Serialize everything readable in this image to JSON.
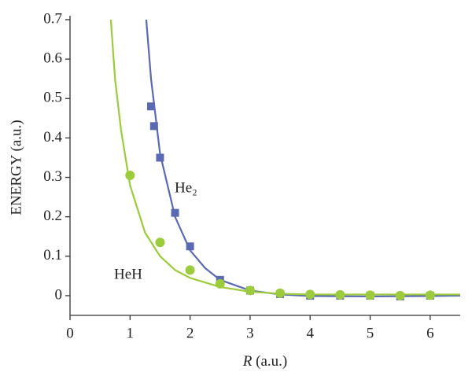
{
  "chart_data": {
    "type": "scatter",
    "x_label": {
      "var": "R",
      "unit": "(a.u.)"
    },
    "y_label": "ENERGY (a.u.)",
    "xlim": [
      0,
      6.5
    ],
    "xticks": [
      0,
      1,
      2,
      3,
      4,
      5,
      6
    ],
    "ylim": [
      -0.05,
      0.7
    ],
    "yticks": [
      0,
      0.1,
      0.2,
      0.3,
      0.4,
      0.5,
      0.6,
      0.7
    ],
    "series": [
      {
        "name": "He₂",
        "color": "#5a69b3",
        "marker": "square",
        "curve": {
          "x": [
            1.27,
            1.35,
            1.5,
            1.75,
            2,
            2.25,
            2.5,
            3,
            3.5,
            4,
            5,
            6,
            6.5
          ],
          "y": [
            0.7,
            0.55,
            0.36,
            0.2,
            0.115,
            0.07,
            0.04,
            0.013,
            0.003,
            -0.001,
            -0.002,
            -0.001,
            0
          ]
        },
        "points": {
          "x": [
            1.35,
            1.4,
            1.5,
            1.75,
            2,
            2.5,
            3,
            3.5,
            4,
            4.5,
            5,
            5.5,
            6
          ],
          "y": [
            0.48,
            0.43,
            0.35,
            0.21,
            0.125,
            0.04,
            0.013,
            0.004,
            0,
            0,
            0,
            -0.002,
            0
          ]
        }
      },
      {
        "name": "HeH",
        "color": "#9ccb3b",
        "marker": "circle",
        "curve": {
          "x": [
            0.68,
            0.75,
            0.85,
            1,
            1.25,
            1.5,
            1.75,
            2,
            2.5,
            3,
            3.5,
            4,
            5,
            6,
            6.5
          ],
          "y": [
            0.7,
            0.55,
            0.42,
            0.28,
            0.16,
            0.1,
            0.065,
            0.045,
            0.022,
            0.01,
            0.005,
            0.003,
            0.003,
            0.003,
            0.003
          ]
        },
        "points": {
          "x": [
            1,
            1.5,
            2,
            2.5,
            3,
            3.5,
            4,
            4.5,
            5,
            5.5,
            6
          ],
          "y": [
            0.305,
            0.135,
            0.065,
            0.03,
            0.013,
            0.006,
            0.003,
            0.002,
            0.001,
            0,
            0.001
          ]
        }
      }
    ]
  }
}
